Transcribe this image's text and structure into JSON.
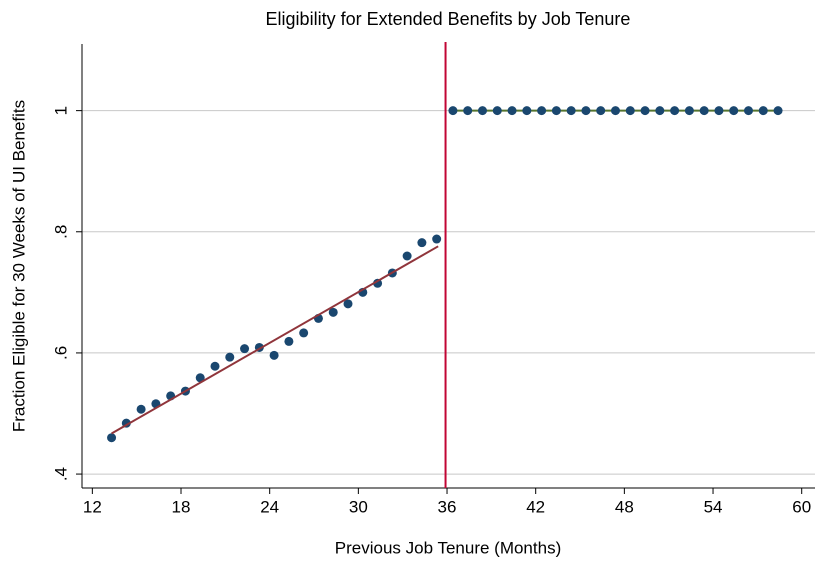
{
  "chart_data": {
    "type": "scatter",
    "title": "Eligibility for Extended Benefits by Job Tenure",
    "xlabel": "Previous Job Tenure (Months)",
    "ylabel": "Fraction Eligible for 30 Weeks of UI Benefits",
    "xlim": [
      11.3,
      60.9
    ],
    "ylim": [
      0.377,
      1.11
    ],
    "xticks": [
      12,
      18,
      24,
      30,
      36,
      42,
      48,
      54,
      60
    ],
    "yticks": [
      {
        "value": 0.4,
        "label": ".4"
      },
      {
        "value": 0.6,
        "label": ".6"
      },
      {
        "value": 0.8,
        "label": ".8"
      },
      1
    ],
    "grid": true,
    "vline": {
      "x": 35.9,
      "color": "#c10534"
    },
    "series": [
      {
        "type": "line",
        "color": "#55752f",
        "x": [
          36.4,
          58.4
        ],
        "values": [
          1,
          1
        ]
      },
      {
        "type": "scatter",
        "color": "#1a476f",
        "x": [
          13.3,
          14.3,
          15.3,
          16.3,
          17.3,
          18.3,
          19.3,
          20.3,
          21.3,
          22.3,
          23.3,
          24.3,
          25.3,
          26.3,
          27.3,
          28.3,
          29.3,
          30.3,
          31.3,
          32.3,
          33.3,
          34.3,
          35.3
        ],
        "values": [
          0.46,
          0.484,
          0.507,
          0.516,
          0.529,
          0.537,
          0.559,
          0.578,
          0.593,
          0.607,
          0.609,
          0.596,
          0.619,
          0.633,
          0.657,
          0.667,
          0.681,
          0.7,
          0.715,
          0.732,
          0.76,
          0.782,
          0.788
        ]
      },
      {
        "type": "scatter",
        "color": "#1a476f",
        "x": [
          36.4,
          37.4,
          38.4,
          39.4,
          40.4,
          41.4,
          42.4,
          43.4,
          44.4,
          45.4,
          46.4,
          47.4,
          48.4,
          49.4,
          50.4,
          51.4,
          52.4,
          53.4,
          54.4,
          55.4,
          56.4,
          57.4,
          58.4
        ],
        "values": [
          1,
          1,
          1,
          1,
          1,
          1,
          1,
          1,
          1,
          1,
          1,
          1,
          1,
          1,
          1,
          1,
          1,
          1,
          1,
          1,
          1,
          1,
          1
        ]
      },
      {
        "type": "line",
        "color": "#90353b",
        "x": [
          13.3,
          35.4
        ],
        "values": [
          0.467,
          0.776
        ]
      }
    ]
  }
}
